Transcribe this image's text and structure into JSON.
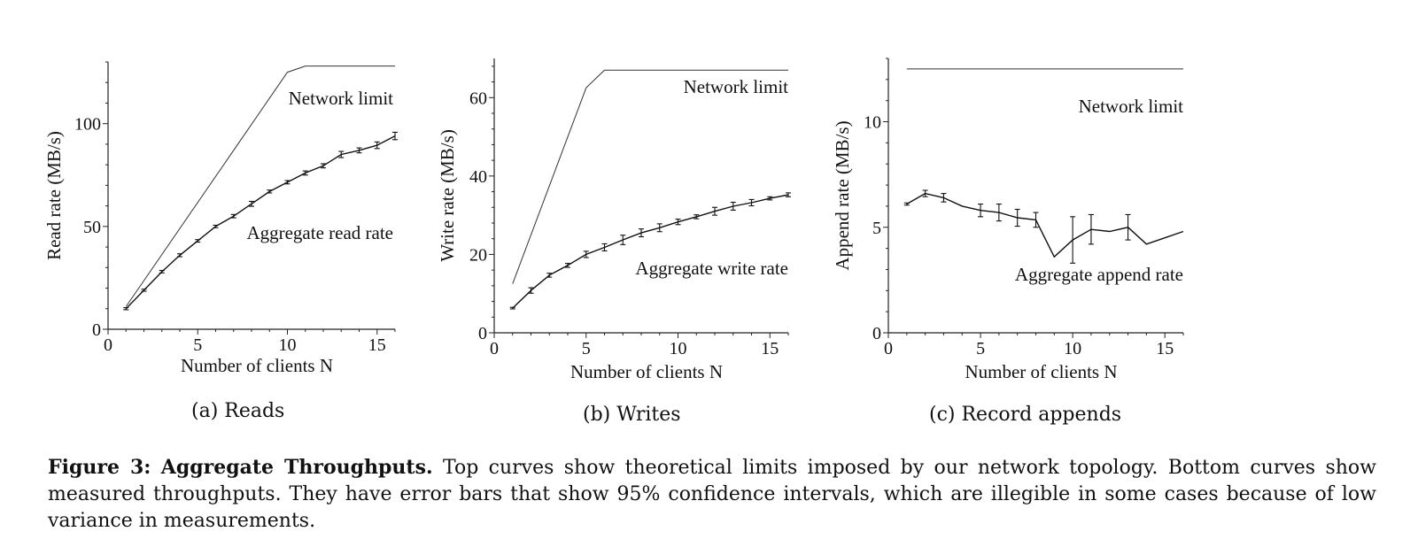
{
  "figure": {
    "label": "Figure 3:",
    "title": "Aggregate Throughputs.",
    "text": "Top curves show theoretical limits imposed by our network topology. Bottom curves show measured throughputs. They have error bars that show 95% confidence intervals, which are illegible in some cases because of low variance in measurements."
  },
  "chart_data": [
    {
      "type": "line",
      "caption": "(a) Reads",
      "xlabel": "Number of clients N",
      "ylabel": "Read rate (MB/s)",
      "xlim": [
        0,
        16
      ],
      "ylim": [
        0,
        130
      ],
      "xticks": [
        0,
        5,
        10,
        15
      ],
      "yticks": [
        0,
        50,
        100
      ],
      "series": [
        {
          "name": "Network limit",
          "x": [
            1,
            10,
            11,
            16
          ],
          "y": [
            11,
            125,
            128,
            128
          ]
        },
        {
          "name": "Aggregate read rate",
          "x": [
            1,
            2,
            3,
            4,
            5,
            6,
            7,
            8,
            9,
            10,
            11,
            12,
            13,
            14,
            15,
            16
          ],
          "y": [
            10,
            19,
            28,
            36,
            43,
            50,
            55,
            61,
            67,
            71.5,
            76,
            79.5,
            85,
            87,
            89.5,
            94
          ],
          "err": [
            0.5,
            0.5,
            0.6,
            0.7,
            0.6,
            0.6,
            0.8,
            1.2,
            0.7,
            0.8,
            1,
            1,
            1.5,
            1.2,
            1.6,
            1.8
          ]
        }
      ]
    },
    {
      "type": "line",
      "caption": "(b) Writes",
      "xlabel": "Number of clients N",
      "ylabel": "Write rate (MB/s)",
      "xlim": [
        0,
        16
      ],
      "ylim": [
        0,
        70
      ],
      "xticks": [
        0,
        5,
        10,
        15
      ],
      "yticks": [
        0,
        20,
        40,
        60
      ],
      "series": [
        {
          "name": "Network limit",
          "x": [
            1,
            5,
            6,
            16
          ],
          "y": [
            12.5,
            62.5,
            67,
            67
          ]
        },
        {
          "name": "Aggregate write rate",
          "x": [
            1,
            2,
            3,
            4,
            5,
            6,
            7,
            8,
            9,
            10,
            11,
            12,
            13,
            14,
            15,
            16
          ],
          "y": [
            6.3,
            10.8,
            14.7,
            17.2,
            20,
            21.8,
            23.7,
            25.5,
            26.8,
            28.3,
            29.6,
            31,
            32.3,
            33.2,
            34.3,
            35.2
          ],
          "err": [
            0.2,
            0.7,
            0.5,
            0.5,
            0.8,
            0.9,
            1.2,
            1,
            1,
            0.7,
            0.5,
            1,
            1,
            0.8,
            0.4,
            0.5
          ]
        }
      ]
    },
    {
      "type": "line",
      "caption": "(c) Record appends",
      "xlabel": "Number of clients N",
      "ylabel": "Append rate (MB/s)",
      "xlim": [
        0,
        16
      ],
      "ylim": [
        0,
        13
      ],
      "xticks": [
        0,
        5,
        10,
        15
      ],
      "yticks": [
        0,
        5,
        10
      ],
      "series": [
        {
          "name": "Network limit",
          "x": [
            1,
            16
          ],
          "y": [
            12.5,
            12.5
          ]
        },
        {
          "name": "Aggregate append rate",
          "x": [
            1,
            2,
            3,
            4,
            5,
            6,
            7,
            8,
            9,
            10,
            11,
            12,
            13,
            14,
            15,
            16
          ],
          "y": [
            6.1,
            6.6,
            6.4,
            6,
            5.8,
            5.7,
            5.45,
            5.35,
            3.6,
            4.4,
            4.9,
            4.8,
            5,
            4.2,
            4.5,
            4.8
          ],
          "err": [
            0.05,
            0.15,
            0.2,
            0,
            0.3,
            0.4,
            0.4,
            0.35,
            0,
            1.1,
            0.7,
            0,
            0.6,
            0,
            0,
            0
          ]
        }
      ]
    }
  ]
}
